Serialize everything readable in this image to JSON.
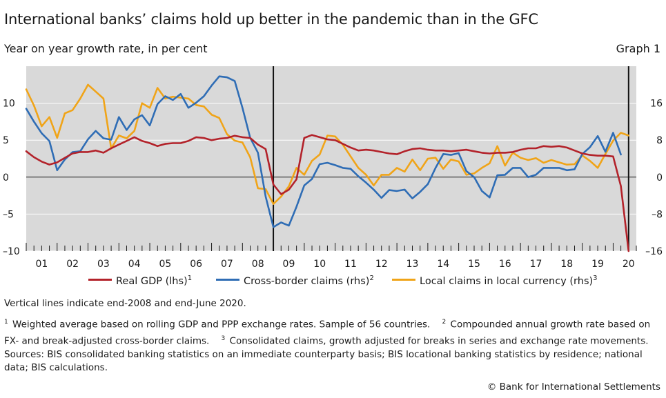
{
  "title": "International banks’ claims hold up better in the pandemic than in the GFC",
  "subtitle": "Year on year growth rate, in per cent",
  "graph_label": "Graph 1",
  "note": "Vertical lines indicate end-2008 and end-June 2020.",
  "footnotes": {
    "f1_num": "1",
    "f1_text": "Weighted average based on rolling GDP and PPP exchange rates. Sample of 56 countries.",
    "f2_num": "2",
    "f2_text": "Compounded annual growth rate based on FX- and break-adjusted cross-border claims.",
    "f3_num": "3",
    "f3_text": "Consolidated claims, growth adjusted for breaks in series and exchange rate movements."
  },
  "sources": "Sources: BIS consolidated banking statistics on an immediate counterparty basis; BIS locational banking statistics by residence; national data; BIS calculations.",
  "copyright": "© Bank for International Settlements",
  "colors": {
    "gdp": "#b3222a",
    "cross_border": "#2f6db5",
    "local": "#f0a418",
    "plot_bg": "#d9d9d9",
    "gridline": "#ffffff"
  },
  "chart_data": {
    "type": "line",
    "xlabel": "",
    "ylabel_left": "",
    "ylabel_right": "",
    "x_range": [
      2001.0,
      2020.75
    ],
    "x_tick_labels": [
      "01",
      "02",
      "03",
      "04",
      "05",
      "06",
      "07",
      "08",
      "09",
      "10",
      "11",
      "12",
      "13",
      "14",
      "15",
      "16",
      "17",
      "18",
      "19",
      "20"
    ],
    "ylim_left": [
      -10,
      15
    ],
    "ylim_right": [
      -16,
      24
    ],
    "yticks_left": [
      {
        "value": 10,
        "label": "10"
      },
      {
        "value": 5,
        "label": "5"
      },
      {
        "value": 0,
        "label": "0"
      },
      {
        "value": -5,
        "label": "–5"
      },
      {
        "value": -10,
        "label": "–10"
      }
    ],
    "yticks_right": [
      {
        "value": 16,
        "label": "16"
      },
      {
        "value": 8,
        "label": "8"
      },
      {
        "value": 0,
        "label": "0"
      },
      {
        "value": -8,
        "label": "–8"
      },
      {
        "value": -16,
        "label": "–16"
      }
    ],
    "vertical_lines": [
      2009.0,
      2020.5
    ],
    "series": [
      {
        "name": "Real GDP (lhs)",
        "footnote": "1",
        "axis": "left",
        "color": "#b3222a",
        "data": [
          [
            2001.0,
            3.5
          ],
          [
            2001.25,
            2.7
          ],
          [
            2001.5,
            2.1
          ],
          [
            2001.75,
            1.7
          ],
          [
            2002.0,
            2.0
          ],
          [
            2002.25,
            2.6
          ],
          [
            2002.5,
            3.2
          ],
          [
            2002.75,
            3.4
          ],
          [
            2003.0,
            3.4
          ],
          [
            2003.25,
            3.6
          ],
          [
            2003.5,
            3.3
          ],
          [
            2003.75,
            3.9
          ],
          [
            2004.0,
            4.4
          ],
          [
            2004.25,
            4.9
          ],
          [
            2004.5,
            5.4
          ],
          [
            2004.75,
            4.9
          ],
          [
            2005.0,
            4.6
          ],
          [
            2005.25,
            4.2
          ],
          [
            2005.5,
            4.5
          ],
          [
            2005.75,
            4.6
          ],
          [
            2006.0,
            4.6
          ],
          [
            2006.25,
            4.9
          ],
          [
            2006.5,
            5.4
          ],
          [
            2006.75,
            5.3
          ],
          [
            2007.0,
            5.0
          ],
          [
            2007.25,
            5.2
          ],
          [
            2007.5,
            5.3
          ],
          [
            2007.75,
            5.6
          ],
          [
            2008.0,
            5.4
          ],
          [
            2008.25,
            5.3
          ],
          [
            2008.5,
            4.4
          ],
          [
            2008.75,
            3.8
          ],
          [
            2009.0,
            -1.0
          ],
          [
            2009.25,
            -2.3
          ],
          [
            2009.5,
            -1.7
          ],
          [
            2009.75,
            -0.3
          ],
          [
            2010.0,
            5.3
          ],
          [
            2010.25,
            5.7
          ],
          [
            2010.5,
            5.4
          ],
          [
            2010.75,
            5.1
          ],
          [
            2011.0,
            5.0
          ],
          [
            2011.25,
            4.5
          ],
          [
            2011.5,
            4.0
          ],
          [
            2011.75,
            3.6
          ],
          [
            2012.0,
            3.7
          ],
          [
            2012.25,
            3.6
          ],
          [
            2012.5,
            3.4
          ],
          [
            2012.75,
            3.2
          ],
          [
            2013.0,
            3.1
          ],
          [
            2013.25,
            3.5
          ],
          [
            2013.5,
            3.8
          ],
          [
            2013.75,
            3.9
          ],
          [
            2014.0,
            3.7
          ],
          [
            2014.25,
            3.6
          ],
          [
            2014.5,
            3.6
          ],
          [
            2014.75,
            3.5
          ],
          [
            2015.0,
            3.6
          ],
          [
            2015.25,
            3.7
          ],
          [
            2015.5,
            3.5
          ],
          [
            2015.75,
            3.3
          ],
          [
            2016.0,
            3.2
          ],
          [
            2016.25,
            3.3
          ],
          [
            2016.5,
            3.3
          ],
          [
            2016.75,
            3.4
          ],
          [
            2017.0,
            3.7
          ],
          [
            2017.25,
            3.9
          ],
          [
            2017.5,
            3.9
          ],
          [
            2017.75,
            4.2
          ],
          [
            2018.0,
            4.1
          ],
          [
            2018.25,
            4.2
          ],
          [
            2018.5,
            4.0
          ],
          [
            2018.75,
            3.6
          ],
          [
            2019.0,
            3.2
          ],
          [
            2019.25,
            3.0
          ],
          [
            2019.5,
            2.9
          ],
          [
            2019.75,
            2.9
          ],
          [
            2020.0,
            2.8
          ],
          [
            2020.25,
            -1.2
          ],
          [
            2020.5,
            -10.0
          ]
        ]
      },
      {
        "name": "Cross-border claims (rhs)",
        "footnote": "2",
        "axis": "right",
        "color": "#2f6db5",
        "data": [
          [
            2001.0,
            14.8
          ],
          [
            2001.25,
            12.0
          ],
          [
            2001.5,
            9.5
          ],
          [
            2001.75,
            7.8
          ],
          [
            2002.0,
            1.5
          ],
          [
            2002.25,
            3.8
          ],
          [
            2002.5,
            5.4
          ],
          [
            2002.75,
            5.6
          ],
          [
            2003.0,
            8.2
          ],
          [
            2003.25,
            10.0
          ],
          [
            2003.5,
            8.4
          ],
          [
            2003.75,
            8.1
          ],
          [
            2004.0,
            13.0
          ],
          [
            2004.25,
            10.2
          ],
          [
            2004.5,
            12.5
          ],
          [
            2004.75,
            13.4
          ],
          [
            2005.0,
            11.2
          ],
          [
            2005.25,
            15.8
          ],
          [
            2005.5,
            17.5
          ],
          [
            2005.75,
            16.7
          ],
          [
            2006.0,
            18.0
          ],
          [
            2006.25,
            15.0
          ],
          [
            2006.5,
            16.1
          ],
          [
            2006.75,
            17.5
          ],
          [
            2007.0,
            19.8
          ],
          [
            2007.25,
            21.8
          ],
          [
            2007.5,
            21.6
          ],
          [
            2007.75,
            20.8
          ],
          [
            2008.0,
            15.0
          ],
          [
            2008.25,
            8.5
          ],
          [
            2008.5,
            5.3
          ],
          [
            2008.75,
            -4.2
          ],
          [
            2009.0,
            -10.8
          ],
          [
            2009.25,
            -9.8
          ],
          [
            2009.5,
            -10.5
          ],
          [
            2009.75,
            -6.4
          ],
          [
            2010.0,
            -1.8
          ],
          [
            2010.25,
            -0.4
          ],
          [
            2010.5,
            2.8
          ],
          [
            2010.75,
            3.1
          ],
          [
            2011.0,
            2.6
          ],
          [
            2011.25,
            2.0
          ],
          [
            2011.5,
            1.8
          ],
          [
            2011.75,
            0.2
          ],
          [
            2012.0,
            -1.2
          ],
          [
            2012.25,
            -2.7
          ],
          [
            2012.5,
            -4.5
          ],
          [
            2012.75,
            -2.8
          ],
          [
            2013.0,
            -3.0
          ],
          [
            2013.25,
            -2.7
          ],
          [
            2013.5,
            -4.6
          ],
          [
            2013.75,
            -3.2
          ],
          [
            2014.0,
            -1.5
          ],
          [
            2014.25,
            2.0
          ],
          [
            2014.5,
            5.0
          ],
          [
            2014.75,
            4.8
          ],
          [
            2015.0,
            5.2
          ],
          [
            2015.25,
            1.3
          ],
          [
            2015.5,
            0.0
          ],
          [
            2015.75,
            -3.0
          ],
          [
            2016.0,
            -4.4
          ],
          [
            2016.25,
            0.4
          ],
          [
            2016.5,
            0.5
          ],
          [
            2016.75,
            2.0
          ],
          [
            2017.0,
            2.0
          ],
          [
            2017.25,
            0.0
          ],
          [
            2017.5,
            0.5
          ],
          [
            2017.75,
            2.0
          ],
          [
            2018.0,
            2.0
          ],
          [
            2018.25,
            2.0
          ],
          [
            2018.5,
            1.5
          ],
          [
            2018.75,
            1.7
          ],
          [
            2019.0,
            5.0
          ],
          [
            2019.25,
            6.5
          ],
          [
            2019.5,
            8.9
          ],
          [
            2019.75,
            5.5
          ],
          [
            2020.0,
            9.6
          ],
          [
            2020.25,
            4.9
          ]
        ]
      },
      {
        "name": "Local claims in local currency (rhs)",
        "footnote": "3",
        "axis": "right",
        "color": "#f0a418",
        "data": [
          [
            2001.0,
            19.0
          ],
          [
            2001.25,
            15.5
          ],
          [
            2001.5,
            11.0
          ],
          [
            2001.75,
            13.0
          ],
          [
            2002.0,
            8.5
          ],
          [
            2002.25,
            13.8
          ],
          [
            2002.5,
            14.5
          ],
          [
            2002.75,
            17.0
          ],
          [
            2003.0,
            20.0
          ],
          [
            2003.25,
            18.5
          ],
          [
            2003.5,
            17.0
          ],
          [
            2003.75,
            6.2
          ],
          [
            2004.0,
            9.0
          ],
          [
            2004.25,
            8.4
          ],
          [
            2004.5,
            10.0
          ],
          [
            2004.75,
            16.0
          ],
          [
            2005.0,
            15.0
          ],
          [
            2005.25,
            19.3
          ],
          [
            2005.5,
            17.0
          ],
          [
            2005.75,
            17.4
          ],
          [
            2006.0,
            17.2
          ],
          [
            2006.25,
            17.0
          ],
          [
            2006.5,
            15.6
          ],
          [
            2006.75,
            15.3
          ],
          [
            2007.0,
            13.5
          ],
          [
            2007.25,
            12.8
          ],
          [
            2007.5,
            9.3
          ],
          [
            2007.75,
            7.9
          ],
          [
            2008.0,
            7.5
          ],
          [
            2008.25,
            4.3
          ],
          [
            2008.5,
            -2.4
          ],
          [
            2008.75,
            -2.6
          ],
          [
            2009.0,
            -5.8
          ],
          [
            2009.25,
            -4.2
          ],
          [
            2009.5,
            -2.0
          ],
          [
            2009.75,
            2.0
          ],
          [
            2010.0,
            0.5
          ],
          [
            2010.25,
            3.5
          ],
          [
            2010.5,
            4.9
          ],
          [
            2010.75,
            9.0
          ],
          [
            2011.0,
            8.8
          ],
          [
            2011.25,
            7.0
          ],
          [
            2011.5,
            4.5
          ],
          [
            2011.75,
            2.0
          ],
          [
            2012.0,
            0.5
          ],
          [
            2012.25,
            -1.8
          ],
          [
            2012.5,
            0.5
          ],
          [
            2012.75,
            0.5
          ],
          [
            2013.0,
            2.0
          ],
          [
            2013.25,
            1.2
          ],
          [
            2013.5,
            3.8
          ],
          [
            2013.75,
            1.5
          ],
          [
            2014.0,
            4.0
          ],
          [
            2014.25,
            4.2
          ],
          [
            2014.5,
            1.8
          ],
          [
            2014.75,
            3.8
          ],
          [
            2015.0,
            3.4
          ],
          [
            2015.25,
            0.5
          ],
          [
            2015.5,
            0.8
          ],
          [
            2015.75,
            2.0
          ],
          [
            2016.0,
            3.0
          ],
          [
            2016.25,
            6.7
          ],
          [
            2016.5,
            2.5
          ],
          [
            2016.75,
            5.3
          ],
          [
            2017.0,
            4.2
          ],
          [
            2017.25,
            3.7
          ],
          [
            2017.5,
            4.1
          ],
          [
            2017.75,
            3.1
          ],
          [
            2018.0,
            3.7
          ],
          [
            2018.25,
            3.2
          ],
          [
            2018.5,
            2.7
          ],
          [
            2018.75,
            2.8
          ],
          [
            2019.0,
            4.7
          ],
          [
            2019.25,
            3.5
          ],
          [
            2019.5,
            2.0
          ],
          [
            2019.75,
            5.0
          ],
          [
            2020.0,
            7.9
          ],
          [
            2020.25,
            9.6
          ],
          [
            2020.5,
            9.0
          ]
        ]
      }
    ]
  }
}
